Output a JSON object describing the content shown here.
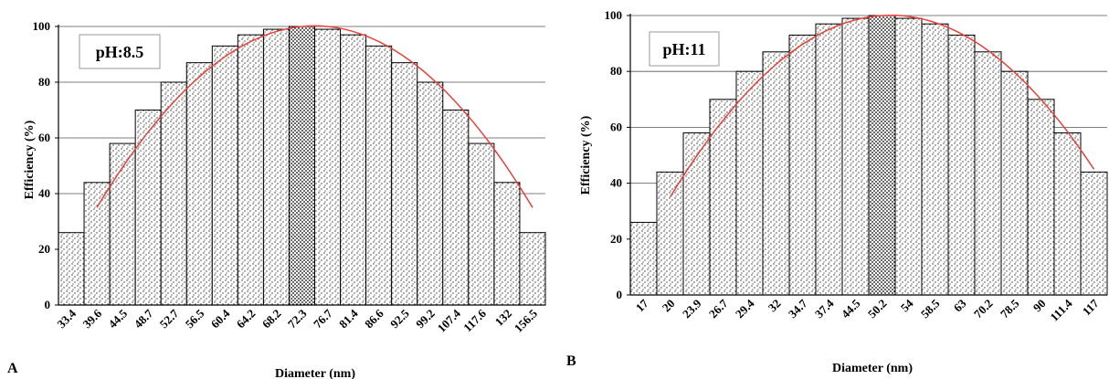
{
  "chart_data": [
    {
      "type": "bar",
      "panel_label": "A",
      "annotation": "pH:8.5",
      "xlabel": "Diameter (nm)",
      "ylabel": "Efficiency (%)",
      "ylim": [
        0,
        100
      ],
      "yticks": [
        0,
        20,
        40,
        60,
        80,
        100
      ],
      "grid": true,
      "categories": [
        "33.4",
        "39.6",
        "44.5",
        "48.7",
        "52.7",
        "56.5",
        "60.4",
        "64.2",
        "68.2",
        "72.3",
        "76.7",
        "81.4",
        "86.6",
        "92.5",
        "99.2",
        "107.4",
        "117.6",
        "132",
        "156.5"
      ],
      "values": [
        26,
        44,
        58,
        70,
        80,
        87,
        93,
        97,
        99,
        100,
        99,
        97,
        93,
        87,
        80,
        70,
        58,
        44,
        26
      ],
      "highlight_index": 9,
      "bar_pattern": "stipple",
      "fit_curve_color": "#e8413c",
      "fit_curve": {
        "start_value": 35,
        "end_value": 35,
        "peak_value": 100
      }
    },
    {
      "type": "bar",
      "panel_label": "B",
      "annotation": "pH:11",
      "xlabel": "Diameter (nm)",
      "ylabel": "Efficiency (%)",
      "ylim": [
        0,
        100
      ],
      "yticks": [
        0,
        20,
        40,
        60,
        80,
        100
      ],
      "grid": true,
      "categories": [
        "17",
        "20",
        "23.9",
        "26.7",
        "29.4",
        "32",
        "34.7",
        "37.4",
        "44.5",
        "50.2",
        "54",
        "58.5",
        "63",
        "70.2",
        "78.5",
        "90",
        "111.4",
        "117"
      ],
      "values": [
        26,
        44,
        58,
        70,
        80,
        87,
        93,
        97,
        99,
        100,
        99,
        97,
        93,
        87,
        80,
        70,
        58,
        44
      ],
      "highlight_index": 9,
      "bar_pattern": "stipple",
      "fit_curve_color": "#e8413c",
      "fit_curve": {
        "start_value": 35,
        "end_value": 45,
        "peak_value": 100
      }
    }
  ]
}
